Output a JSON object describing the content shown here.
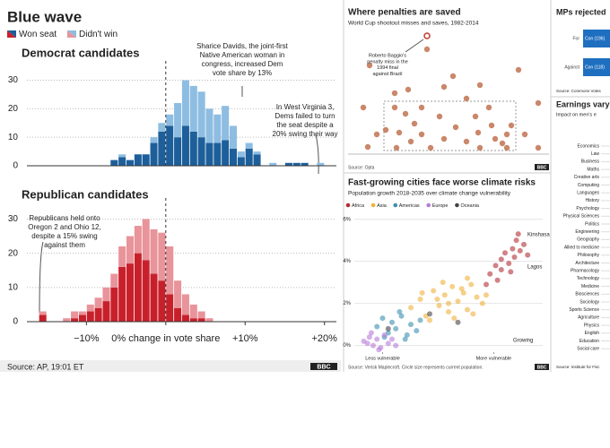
{
  "header": {
    "title": "Blue wave",
    "source": "Source: AP, 19:01 ET",
    "logo": "BBC"
  },
  "chart_data": [
    {
      "type": "histogram",
      "title": "Democrat candidates",
      "bins": [
        -8,
        -7,
        -6,
        -5,
        -4,
        -3,
        -2,
        -1,
        0,
        1,
        2,
        3,
        4,
        5,
        6,
        7,
        8,
        9,
        10,
        11,
        12,
        13,
        14,
        15,
        16,
        17,
        18,
        19,
        20
      ],
      "series": [
        {
          "name": "Won seat",
          "color": "#1d5f9a",
          "values": [
            0,
            2,
            3,
            2,
            4,
            4,
            8,
            12,
            14,
            10,
            14,
            12,
            10,
            8,
            8,
            9,
            6,
            3,
            6,
            4,
            0,
            0,
            0,
            1,
            1,
            1,
            0,
            0
          ]
        },
        {
          "name": "Didn't win",
          "color": "#8ebde2",
          "values": [
            0,
            0,
            1,
            0,
            0,
            0,
            2,
            3,
            4,
            12,
            16,
            16,
            16,
            12,
            10,
            12,
            8,
            2,
            2,
            1,
            0,
            1,
            0,
            0,
            0,
            0,
            0,
            1
          ]
        }
      ],
      "xlim": [
        -17.5,
        21.5
      ],
      "ylim": [
        0,
        33
      ],
      "yticks": [
        0,
        10,
        20,
        30
      ],
      "grid": true,
      "annotations": [
        {
          "lines": [
            "Sharice Davids, the joint-first",
            "Native American woman in",
            "congress, increased Dem",
            "vote share by 13%"
          ]
        },
        {
          "lines": [
            "In West Virginia 3,",
            "Dems failed to turn",
            "the seat despite a",
            "20% swing their way"
          ]
        }
      ]
    },
    {
      "type": "histogram",
      "title": "Republican candidates",
      "bins": [
        -17,
        -16,
        -15,
        -14,
        -13,
        -12,
        -11,
        -10,
        -9,
        -8,
        -7,
        -6,
        -5,
        -4,
        -3,
        -2,
        -1,
        0,
        1,
        2,
        3,
        4,
        5,
        6
      ],
      "series": [
        {
          "name": "Won seat",
          "color": "#c8202b",
          "values": [
            0,
            2,
            0,
            0,
            0,
            1,
            2,
            3,
            4,
            6,
            10,
            16,
            17,
            20,
            18,
            14,
            12,
            8,
            4,
            2,
            1,
            1,
            0
          ]
        },
        {
          "name": "Didn't win",
          "color": "#e8949a",
          "values": [
            0,
            1,
            0,
            0,
            1,
            2,
            1,
            2,
            3,
            4,
            4,
            6,
            8,
            8,
            12,
            13,
            14,
            14,
            8,
            6,
            4,
            2,
            1
          ]
        }
      ],
      "xlim": [
        -17.5,
        21.5
      ],
      "ylim": [
        0,
        33
      ],
      "yticks": [
        0,
        10,
        20,
        30
      ],
      "grid": true,
      "xticks": [
        {
          "value": -10,
          "label": "−10%"
        },
        {
          "value": 0,
          "label": "0% change in vote share"
        },
        {
          "value": 10,
          "label": "+10%"
        },
        {
          "value": 20,
          "label": "+20%"
        }
      ],
      "annotations": [
        {
          "lines": [
            "Republicans held onto",
            "Oregon 2 and Ohio 12,",
            "despite a 15% swing",
            "against them"
          ]
        }
      ]
    },
    {
      "type": "scatter",
      "title": "Where penalties are saved",
      "subtitle": "World Cup shootout misses and saves, 1982-2014",
      "source": "Source: Opta",
      "logo": "BBC",
      "series": [
        {
          "color": "#c47a5a",
          "x": [
            20,
            48,
            84,
            113,
            143,
            186,
            18,
            63,
            103,
            128,
            48,
            60,
            70,
            53,
            66,
            78,
            88,
            103,
            116,
            128,
            141,
            156,
            168,
            173,
            160,
            178,
            50,
            38,
            98,
            173,
            193,
            208,
            78,
            153,
            138,
            13,
            28,
            208,
            143
          ],
          "y": [
            99,
            68,
            117,
            87,
            77,
            94,
            8,
            72,
            75,
            62,
            52,
            45,
            34,
            24,
            14,
            22,
            7,
            17,
            30,
            14,
            24,
            32,
            12,
            22,
            17,
            32,
            7,
            27,
            42,
            7,
            22,
            7,
            52,
            52,
            42,
            52,
            22,
            57,
            7
          ]
        }
      ],
      "highlight": {
        "x": 84,
        "y": 132
      },
      "xlim": [
        0,
        220
      ],
      "ylim": [
        0,
        132
      ],
      "annotations": [
        {
          "lines": [
            "Roberto Baggio's",
            "penalty miss in the",
            "1994 final",
            "against Brazil"
          ]
        }
      ]
    },
    {
      "type": "scatter",
      "title": "Fast-growing cities face worse climate risks",
      "subtitle": "Population growth 2018-2035 over climate change vulnerability",
      "source": "Source: Verisk Maplecroft. Circle size represents current population.",
      "logo": "BBC",
      "series": [
        {
          "name": "Africa",
          "color": "#b32e35",
          "x": [
            72,
            75,
            78,
            80,
            82,
            84,
            85,
            86,
            88,
            90,
            92,
            78,
            83,
            87,
            70,
            76
          ],
          "y": [
            3.4,
            3.8,
            4.1,
            4.4,
            3.9,
            4.6,
            4.2,
            5.0,
            4.5,
            4.8,
            4.3,
            3.6,
            3.5,
            5.3,
            2.9,
            3.1
          ]
        },
        {
          "name": "Asia",
          "color": "#f0b13a",
          "x": [
            30,
            35,
            38,
            42,
            45,
            48,
            50,
            52,
            55,
            58,
            60,
            62,
            65,
            68,
            40,
            47,
            53,
            57,
            63,
            70,
            44,
            50,
            36,
            60
          ],
          "y": [
            1.8,
            2.2,
            1.4,
            2.6,
            1.9,
            2.4,
            1.6,
            2.8,
            2.1,
            2.5,
            1.7,
            2.9,
            2.3,
            2.0,
            1.2,
            3.0,
            1.3,
            2.7,
            1.5,
            2.4,
            2.2,
            2.0,
            2.5,
            3.2
          ]
        },
        {
          "name": "Americas",
          "color": "#3a8fb0",
          "x": [
            12,
            15,
            18,
            20,
            22,
            25,
            28,
            30,
            33,
            16,
            24,
            35,
            27
          ],
          "y": [
            0.9,
            1.3,
            0.6,
            1.1,
            0.8,
            1.4,
            0.5,
            1.0,
            0.7,
            0.4,
            1.6,
            1.2,
            0.3
          ]
        },
        {
          "name": "Europe",
          "color": "#b77ad9",
          "x": [
            5,
            8,
            10,
            12,
            14,
            16,
            18,
            20,
            9,
            13,
            22,
            7
          ],
          "y": [
            0.2,
            0.4,
            0.0,
            0.3,
            -0.1,
            0.5,
            0.1,
            0.3,
            0.6,
            -0.2,
            0.0,
            0.1
          ]
        },
        {
          "name": "Oceania",
          "color": "#444444",
          "x": [
            18,
            40,
            55
          ],
          "y": [
            0.8,
            1.5,
            1.1
          ]
        }
      ],
      "xlim": [
        0,
        100
      ],
      "ylim": [
        -0.4,
        6.2
      ],
      "yticks": [
        {
          "value": 0,
          "label": "0%"
        },
        {
          "value": 2,
          "label": "2%"
        },
        {
          "value": 4,
          "label": "4%"
        },
        {
          "value": 6,
          "label": "6%"
        }
      ],
      "xticks": [
        {
          "value": 15,
          "label": "Less vulnerable"
        },
        {
          "value": 74,
          "label": "More vulnerable"
        }
      ],
      "annotations": [
        {
          "lines": [
            "Kinshasa"
          ]
        },
        {
          "lines": [
            "Lagos"
          ]
        },
        {
          "lines": [
            "Growing"
          ]
        }
      ]
    }
  ],
  "mps_panel": {
    "title": "MPs rejected",
    "rows": [
      "For",
      "Against"
    ],
    "bar_labels": [
      "Con (196)",
      "Con (118)"
    ],
    "source": "Source: Commons Votes"
  },
  "earnings_panel": {
    "title": "Earnings vary",
    "subtitle": "Impact on men's e",
    "items": [
      "Economics",
      "Law",
      "Business",
      "Maths",
      "Creative arts",
      "Computing",
      "Languages",
      "History",
      "Psychology",
      "Physical Sciences",
      "Politics",
      "Engineering",
      "Geography",
      "Allied to medicine",
      "Philosophy",
      "Architecture",
      "Pharmacology",
      "Technology",
      "Medicine",
      "Biosciences",
      "Sociology",
      "Sports Science",
      "Agriculture",
      "Physics",
      "English",
      "Education",
      "Social care"
    ],
    "source": "Source: Institute for Fisc"
  }
}
